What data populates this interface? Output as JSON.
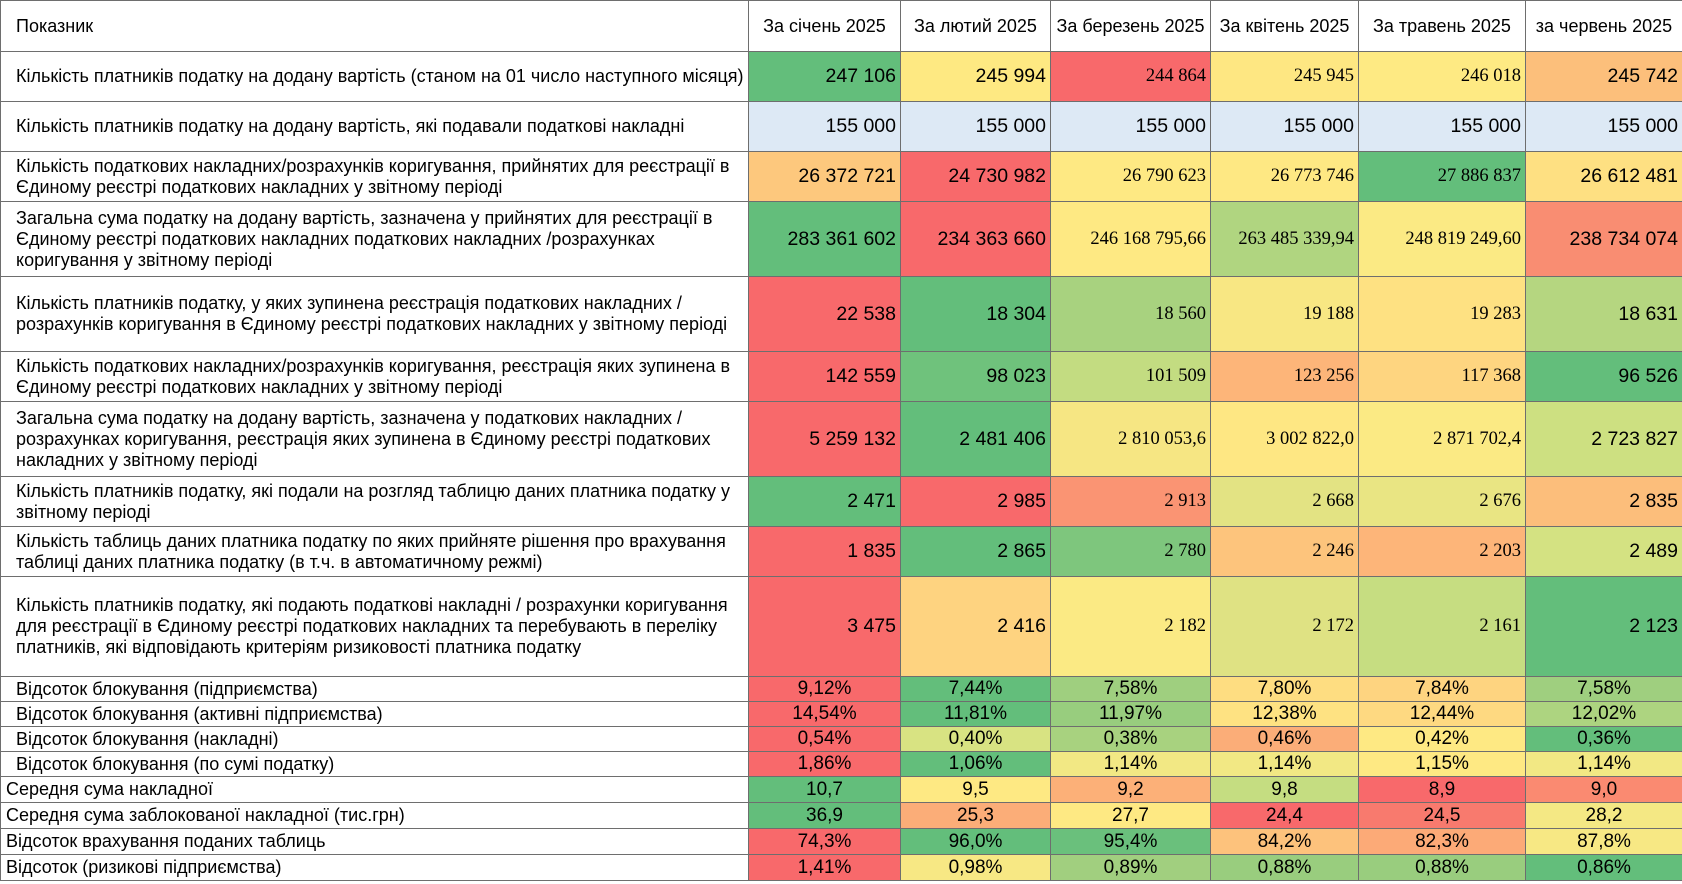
{
  "table": {
    "indicator_header": "Показник",
    "months": [
      "За січень 2025",
      "За лютий 2025",
      "За березень 2025",
      "За квітень 2025",
      "За травень 2025",
      "за червень 2025"
    ],
    "rows": [
      {
        "label": "Кількість платників податку на додану вартість (станом на 01 число наступного місяця)",
        "style": "num",
        "cells": [
          {
            "v": "247 106",
            "f": "sans",
            "c": "#63be7b"
          },
          {
            "v": "245 994",
            "f": "sans",
            "c": "#fee982"
          },
          {
            "v": "244 864",
            "f": "serif",
            "c": "#f8696b"
          },
          {
            "v": "245 945",
            "f": "serif",
            "c": "#fee782"
          },
          {
            "v": "246 018",
            "f": "serif",
            "c": "#feea83"
          },
          {
            "v": "245 742",
            "f": "sans",
            "c": "#fcbf7b"
          }
        ]
      },
      {
        "label": "Кількість платників податку на додану вартість, які подавали податкові накладні",
        "style": "num",
        "cells": [
          {
            "v": "155 000",
            "f": "sans",
            "c": "#dde9f5"
          },
          {
            "v": "155 000",
            "f": "sans",
            "c": "#dde9f5"
          },
          {
            "v": "155 000",
            "f": "sans",
            "c": "#dde9f5"
          },
          {
            "v": "155 000",
            "f": "sans",
            "c": "#dde9f5"
          },
          {
            "v": "155 000",
            "f": "sans",
            "c": "#dde9f5"
          },
          {
            "v": "155 000",
            "f": "sans",
            "c": "#dde9f5"
          }
        ]
      },
      {
        "label": "Кількість податкових накладних/розрахунків коригування, прийнятих для реєстрації в Єдиному реєстрі податкових накладних у звітному періоді",
        "style": "num",
        "cells": [
          {
            "v": "26 372 721",
            "f": "sans",
            "c": "#fdc87d"
          },
          {
            "v": "24 730 982",
            "f": "sans",
            "c": "#f8696b"
          },
          {
            "v": "26 790 623",
            "f": "serif",
            "c": "#fee983"
          },
          {
            "v": "26 773 746",
            "f": "serif",
            "c": "#fee883"
          },
          {
            "v": "27 886 837",
            "f": "serif",
            "c": "#63be7b"
          },
          {
            "v": "26 612 481",
            "f": "sans",
            "c": "#fee082"
          }
        ]
      },
      {
        "label": "Загальна сума податку на додану вартість, зазначена у прийнятих для реєстрації в Єдиному реєстрі податкових накладних податкових накладних /розрахунках коригування у звітному періоді",
        "style": "num",
        "cells": [
          {
            "v": "283 361 602",
            "f": "sans",
            "c": "#63be7b"
          },
          {
            "v": "234 363 660",
            "f": "sans",
            "c": "#f8696b"
          },
          {
            "v": "246 168 795,66",
            "f": "serif",
            "c": "#fee983"
          },
          {
            "v": "263 485 339,94",
            "f": "serif",
            "c": "#b0d580"
          },
          {
            "v": "248 819 249,60",
            "f": "serif",
            "c": "#fbea84"
          },
          {
            "v": "238 734 074",
            "f": "sans",
            "c": "#f98d72"
          }
        ]
      },
      {
        "label": "Кількість платників податку, у яких зупинена реєстрація податкових накладних / розрахунків коригування в Єдиному реєстрі податкових накладних у звітному періоді",
        "style": "num",
        "cells": [
          {
            "v": "22 538",
            "f": "sans",
            "c": "#f8696b"
          },
          {
            "v": "18 304",
            "f": "sans",
            "c": "#63be7b"
          },
          {
            "v": "18 560",
            "f": "serif",
            "c": "#a8d27f"
          },
          {
            "v": "19 188",
            "f": "serif",
            "c": "#f8e783"
          },
          {
            "v": "19 283",
            "f": "serif",
            "c": "#fee182"
          },
          {
            "v": "18 631",
            "f": "sans",
            "c": "#b5d680"
          }
        ]
      },
      {
        "label": "Кількість податкових накладних/розрахунків коригування, реєстрація яких зупинена в Єдиному реєстрі податкових накладних у звітному періоді",
        "style": "num",
        "cells": [
          {
            "v": "142 559",
            "f": "sans",
            "c": "#f8696b"
          },
          {
            "v": "98 023",
            "f": "sans",
            "c": "#6fc27c"
          },
          {
            "v": "101 509",
            "f": "serif",
            "c": "#c3dc81"
          },
          {
            "v": "123 256",
            "f": "serif",
            "c": "#fdb579"
          },
          {
            "v": "117 368",
            "f": "serif",
            "c": "#fed580"
          },
          {
            "v": "96 526",
            "f": "sans",
            "c": "#63be7b"
          }
        ]
      },
      {
        "label": "Загальна сума податку на додану вартість, зазначена у податкових накладних /розрахунках коригування, реєстрація яких зупинена в Єдиному реєстрі податкових накладних у звітному періоді",
        "style": "num",
        "cells": [
          {
            "v": "5 259 132",
            "f": "sans",
            "c": "#f8696b"
          },
          {
            "v": "2 481 406",
            "f": "sans",
            "c": "#63be7b"
          },
          {
            "v": "2 810 053,6",
            "f": "serif",
            "c": "#f6e683"
          },
          {
            "v": "3 002 822,0",
            "f": "serif",
            "c": "#fee783"
          },
          {
            "v": "2 871 702,4",
            "f": "serif",
            "c": "#fbea84"
          },
          {
            "v": "2 723 827",
            "f": "sans",
            "c": "#cde081"
          }
        ]
      },
      {
        "label": "Кількість платників податку, які подали на розгляд таблицю даних платника податку у звітному періоді",
        "style": "num",
        "cells": [
          {
            "v": "2 471",
            "f": "sans",
            "c": "#63be7b"
          },
          {
            "v": "2 985",
            "f": "sans",
            "c": "#f8696b"
          },
          {
            "v": "2 913",
            "f": "serif",
            "c": "#fa9473"
          },
          {
            "v": "2 668",
            "f": "serif",
            "c": "#e3e383"
          },
          {
            "v": "2 676",
            "f": "serif",
            "c": "#e9e583"
          },
          {
            "v": "2 835",
            "f": "sans",
            "c": "#fcbe7b"
          }
        ]
      },
      {
        "label": "Кількість таблиць даних платника податку по яких прийняте рішення про врахування таблиці даних платника податку (в т.ч. в автоматичному режмі)",
        "style": "num",
        "cells": [
          {
            "v": "1 835",
            "f": "sans",
            "c": "#f8696b"
          },
          {
            "v": "2 865",
            "f": "sans",
            "c": "#63be7b"
          },
          {
            "v": "2 780",
            "f": "serif",
            "c": "#7ec67d"
          },
          {
            "v": "2 246",
            "f": "serif",
            "c": "#fdc47c"
          },
          {
            "v": "2 203",
            "f": "serif",
            "c": "#fdb579"
          },
          {
            "v": "2 489",
            "f": "sans",
            "c": "#d4e282"
          }
        ]
      },
      {
        "label": "Кількість платників податку, які подають податкові накладні / розрахунки коригування для реєстрації в Єдиному реєстрі податкових накладних та перебувають в переліку платників, які відповідають критеріям ризиковості платника податку",
        "style": "num",
        "cells": [
          {
            "v": "3 475",
            "f": "sans",
            "c": "#f8696b"
          },
          {
            "v": "2 416",
            "f": "sans",
            "c": "#fed380"
          },
          {
            "v": "2 182",
            "f": "serif",
            "c": "#fbea84"
          },
          {
            "v": "2 172",
            "f": "serif",
            "c": "#dfe283"
          },
          {
            "v": "2 161",
            "f": "serif",
            "c": "#c6dd81"
          },
          {
            "v": "2 123",
            "f": "sans",
            "c": "#63be7b"
          }
        ]
      },
      {
        "label": "Відсоток блокування (підприємства)",
        "style": "pct",
        "cells": [
          {
            "v": "9,12%",
            "c": "#f8696b"
          },
          {
            "v": "7,44%",
            "c": "#63be7b"
          },
          {
            "v": "7,58%",
            "c": "#9fcf7f"
          },
          {
            "v": "7,80%",
            "c": "#fedd81"
          },
          {
            "v": "7,84%",
            "c": "#fed480"
          },
          {
            "v": "7,58%",
            "c": "#9fcf7f"
          }
        ]
      },
      {
        "label": "Відсоток блокування (активні підприємства)",
        "style": "pct",
        "cells": [
          {
            "v": "14,54%",
            "c": "#f8696b"
          },
          {
            "v": "11,81%",
            "c": "#63be7b"
          },
          {
            "v": "11,97%",
            "c": "#98cd7e"
          },
          {
            "v": "12,38%",
            "c": "#fee282"
          },
          {
            "v": "12,44%",
            "c": "#fed981"
          },
          {
            "v": "12,02%",
            "c": "#add480"
          }
        ]
      },
      {
        "label": "Відсоток блокування (накладні)",
        "style": "pct",
        "cells": [
          {
            "v": "0,54%",
            "c": "#f8696b"
          },
          {
            "v": "0,40%",
            "c": "#d8e382"
          },
          {
            "v": "0,38%",
            "c": "#a8d27f"
          },
          {
            "v": "0,46%",
            "c": "#fbad78"
          },
          {
            "v": "0,42%",
            "c": "#fee983"
          },
          {
            "v": "0,36%",
            "c": "#63be7b"
          }
        ]
      },
      {
        "label": "Відсоток блокування (по сумі податку)",
        "style": "pct",
        "cells": [
          {
            "v": "1,86%",
            "c": "#f8696b"
          },
          {
            "v": "1,06%",
            "c": "#63be7b"
          },
          {
            "v": "1,14%",
            "c": "#f2e884"
          },
          {
            "v": "1,14%",
            "c": "#f2e884"
          },
          {
            "v": "1,15%",
            "c": "#fee983"
          },
          {
            "v": "1,14%",
            "c": "#f2e884"
          }
        ]
      },
      {
        "label": "Середня сума накладної",
        "style": "pct",
        "flush": true,
        "cells": [
          {
            "v": "10,7",
            "c": "#63be7b"
          },
          {
            "v": "9,5",
            "c": "#fee983"
          },
          {
            "v": "9,2",
            "c": "#fcb078"
          },
          {
            "v": "9,8",
            "c": "#c5dd81"
          },
          {
            "v": "8,9",
            "c": "#f8696b"
          },
          {
            "v": "9,0",
            "c": "#fa8a71"
          }
        ]
      },
      {
        "label": "Середня сума заблокованої накладної (тис.грн)",
        "style": "pct",
        "flush": true,
        "cells": [
          {
            "v": "36,9",
            "c": "#63be7b"
          },
          {
            "v": "25,3",
            "c": "#fbad78"
          },
          {
            "v": "27,7",
            "c": "#fee983"
          },
          {
            "v": "24,4",
            "c": "#f8696b"
          },
          {
            "v": "24,5",
            "c": "#f87a6e"
          },
          {
            "v": "28,2",
            "c": "#f4e884"
          }
        ]
      },
      {
        "label": "Відсоток врахування поданих таблиць",
        "style": "pct",
        "flush": true,
        "cells": [
          {
            "v": "74,3%",
            "c": "#f8696b"
          },
          {
            "v": "96,0%",
            "c": "#63be7b"
          },
          {
            "v": "95,4%",
            "c": "#6ac07c"
          },
          {
            "v": "84,2%",
            "c": "#fdc27c"
          },
          {
            "v": "82,3%",
            "c": "#fcaa77"
          },
          {
            "v": "87,8%",
            "c": "#f7e884"
          }
        ]
      },
      {
        "label": "Відсоток (ризикові підприємства)",
        "style": "pct",
        "flush": true,
        "cells": [
          {
            "v": "1,41%",
            "c": "#f8696b"
          },
          {
            "v": "0,98%",
            "c": "#f7e884"
          },
          {
            "v": "0,89%",
            "c": "#a1cf7f"
          },
          {
            "v": "0,88%",
            "c": "#99cd7e"
          },
          {
            "v": "0,88%",
            "c": "#99cd7e"
          },
          {
            "v": "0,86%",
            "c": "#63be7b"
          }
        ]
      }
    ]
  }
}
